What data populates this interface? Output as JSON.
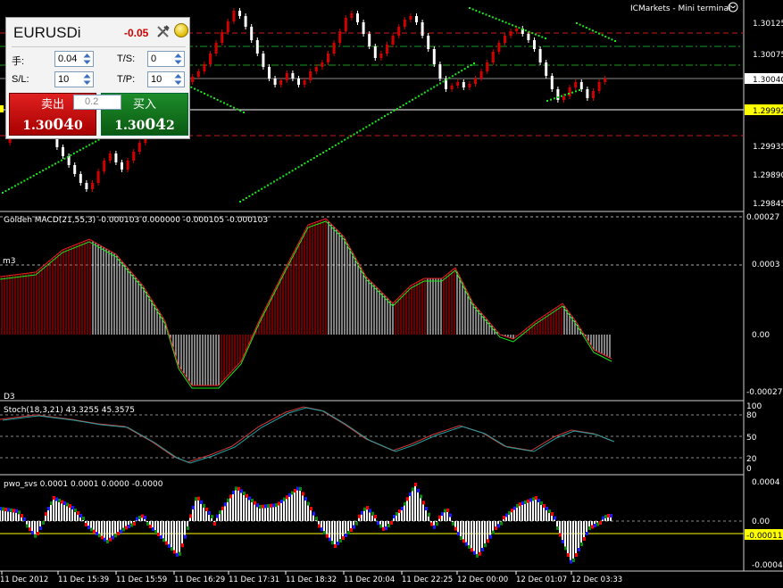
{
  "terminal": {
    "title": "ICMarkets - Mini terminal",
    "close_icon": "circle-close-icon"
  },
  "one_click": {
    "symbol": "EURUSDi",
    "change": "-0.05",
    "lot_label": "手:",
    "lot_value": "0.04",
    "ts_label": "T/S:",
    "ts_value": "0",
    "sl_label": "S/L:",
    "sl_value": "10",
    "tp_label": "T/P:",
    "tp_value": "10",
    "lot_mid": "0.2",
    "sell_label": "卖出",
    "sell_price_prefix": "1.30",
    "sell_price_big": "04",
    "sell_price_suffix": "0",
    "buy_label": "买入",
    "buy_price_prefix": "1.30",
    "buy_price_big": "04",
    "buy_price_suffix": "2"
  },
  "main_chart": {
    "price_ticks": [
      "1.30125",
      "1.30075",
      "1.30040",
      "1.29992",
      "1.29935",
      "1.29890",
      "1.29845"
    ],
    "current_price": "1.30040",
    "bid_line_price": "1.29992"
  },
  "macd": {
    "caption": "Golden MACD(21,55,3) -0.000103 0.000000 -0.000105 -0.000103",
    "m3_label": "m3",
    "d3_label": "D3",
    "ticks": [
      "0.00027",
      "0.0003",
      "0.00",
      "-0.00027"
    ]
  },
  "stoch": {
    "caption": "Stoch(18,3,21) 43.3255 45.3575",
    "ticks": [
      "100",
      "80",
      "50",
      "20",
      "0"
    ]
  },
  "pwo": {
    "caption": "pwo_svs 0.0001 0.0001 0.0000 -0.0000",
    "ticks": [
      "0.0004",
      "0.00",
      "-0.00011",
      "-0.0004"
    ],
    "current_value": "-0.00011"
  },
  "time_axis": [
    "11 Dec 2012",
    "11 Dec 15:39",
    "11 Dec 15:59",
    "11 Dec 16:29",
    "11 Dec 17:31",
    "11 Dec 18:32",
    "11 Dec 20:04",
    "11 Dec 22:25",
    "12 Dec 00:00",
    "12 Dec 01:07",
    "12 Dec 03:33"
  ],
  "colors": {
    "bull": "#d40000",
    "bear": "#ffffff",
    "dots": "#1ee61e",
    "level_red": "#c81c1c",
    "level_green": "#1b9b1b",
    "bid_line": "#ffffff",
    "pwo_blue": "#1a1aff",
    "pwo_green": "#0a8a0a",
    "pwo_red": "#ff0000",
    "pwo_zero": "#ffff00",
    "current_tag": "#ffff00"
  }
}
